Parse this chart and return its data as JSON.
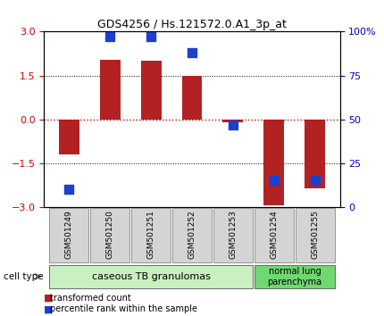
{
  "title": "GDS4256 / Hs.121572.0.A1_3p_at",
  "samples": [
    "GSM501249",
    "GSM501250",
    "GSM501251",
    "GSM501252",
    "GSM501253",
    "GSM501254",
    "GSM501255"
  ],
  "transformed_count": [
    -1.2,
    2.05,
    2.0,
    1.5,
    -0.1,
    -2.95,
    -2.35
  ],
  "percentile_rank": [
    10,
    97,
    97,
    88,
    47,
    15,
    15
  ],
  "ylim_left": [
    -3,
    3
  ],
  "ylim_right": [
    0,
    100
  ],
  "yticks_left": [
    -3,
    -1.5,
    0,
    1.5,
    3
  ],
  "yticks_right": [
    0,
    25,
    50,
    75,
    100
  ],
  "ytick_labels_right": [
    "0",
    "25",
    "50",
    "75",
    "100%"
  ],
  "bar_color": "#b22222",
  "dot_color": "#1e3fcc",
  "hline_red_color": "#cc0000",
  "cell_types": [
    {
      "label": "caseous TB granulomas",
      "start": 0,
      "end": 4,
      "color": "#c8f0c0"
    },
    {
      "label": "normal lung\nparenchyma",
      "start": 5,
      "end": 6,
      "color": "#70d870"
    }
  ],
  "cell_type_label": "cell type",
  "legend_items": [
    {
      "color": "#b22222",
      "label": "transformed count"
    },
    {
      "color": "#1e3fcc",
      "label": "percentile rank within the sample"
    }
  ],
  "bar_width": 0.5,
  "dot_size": 55,
  "background_color": "#ffffff",
  "tick_color_left": "#cc0000",
  "tick_color_right": "#0000cc",
  "title_fontsize": 9
}
